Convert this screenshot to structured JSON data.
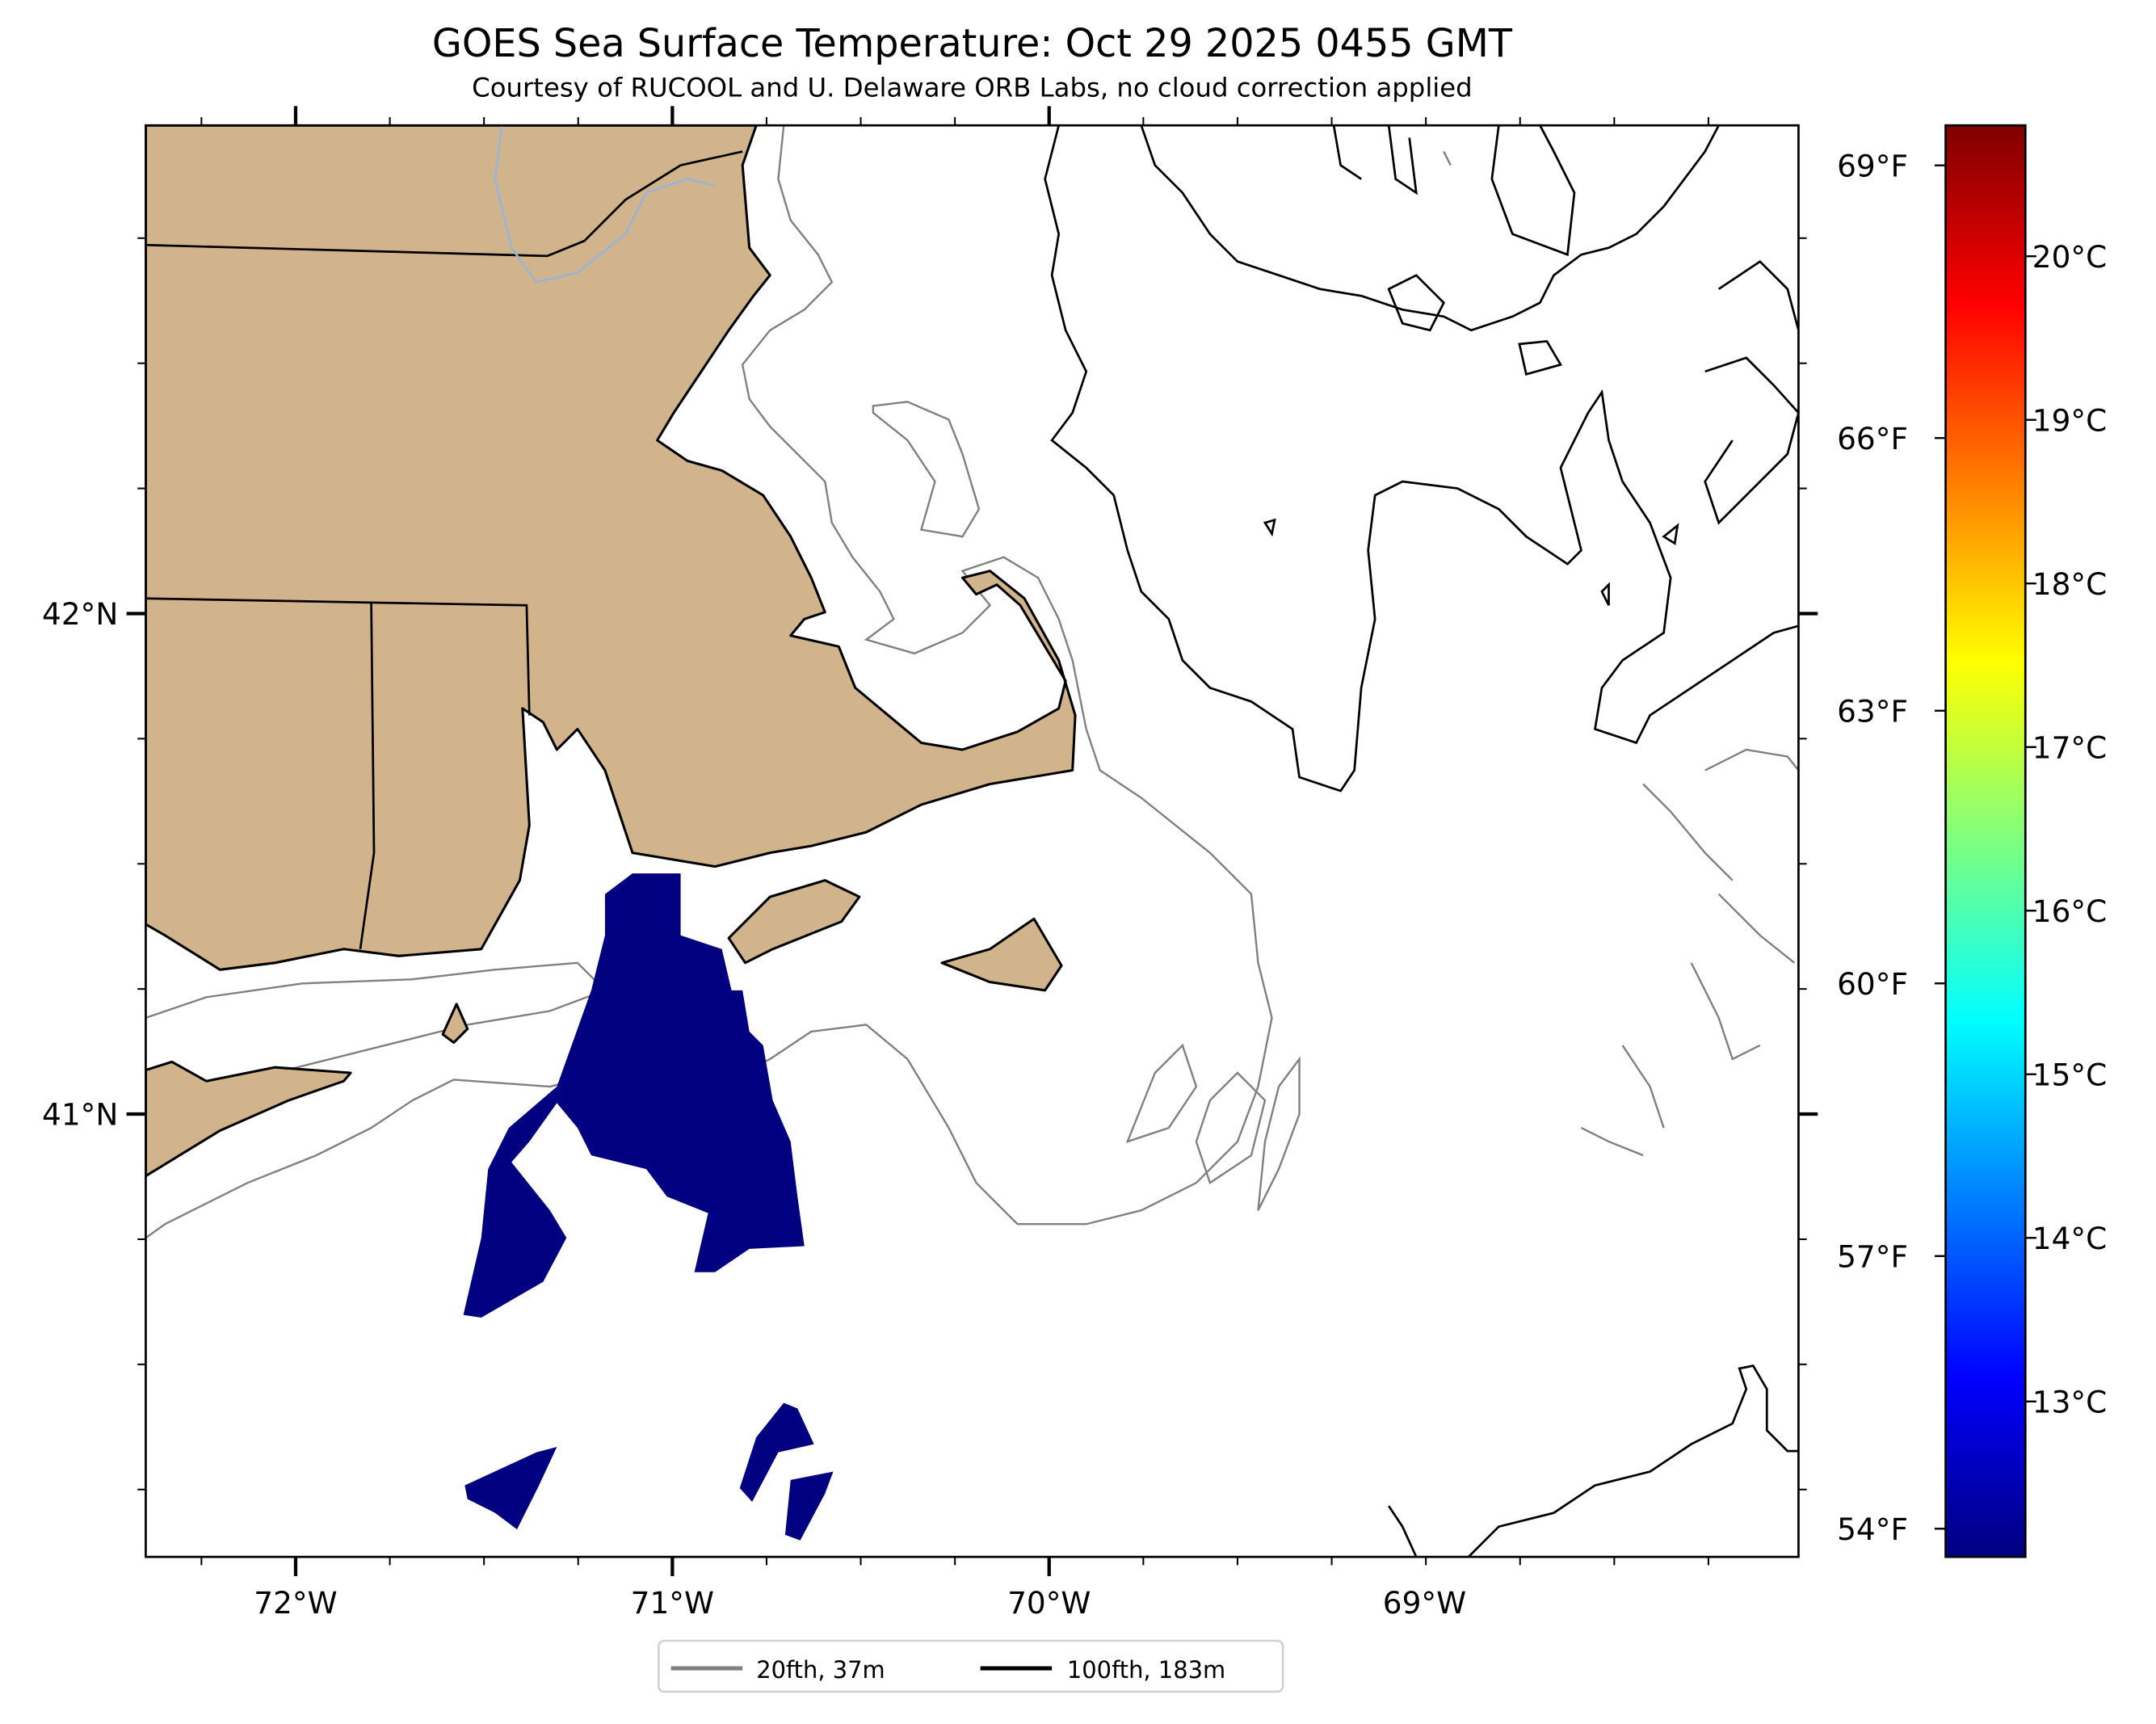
{
  "title": "GOES Sea Surface Temperature: Oct 29 2025 0455 GMT",
  "subtitle": "Courtesy of RUCOOL and U. Delaware ORB Labs, no cloud correction applied",
  "map": {
    "lon_labels": [
      "72°W",
      "71°W",
      "70°W",
      "69°W"
    ],
    "lat_labels": [
      "42°N",
      "41°N"
    ],
    "colors": {
      "land": "#d2b48c",
      "ocean": "#ffffff",
      "sst_patch": "#000080",
      "contour_20fth": "#808080",
      "contour_100fth": "#000000",
      "river": "#9ab4d6"
    }
  },
  "colorbar": {
    "range_c": [
      12.05,
      20.8
    ],
    "fahrenheit_ticks": [
      {
        "label": "69°F",
        "value_f": 69
      },
      {
        "label": "66°F",
        "value_f": 66
      },
      {
        "label": "63°F",
        "value_f": 63
      },
      {
        "label": "60°F",
        "value_f": 60
      },
      {
        "label": "57°F",
        "value_f": 57
      },
      {
        "label": "54°F",
        "value_f": 54
      }
    ],
    "celsius_ticks": [
      {
        "label": "20°C",
        "value_c": 20
      },
      {
        "label": "19°C",
        "value_c": 19
      },
      {
        "label": "18°C",
        "value_c": 18
      },
      {
        "label": "17°C",
        "value_c": 17
      },
      {
        "label": "16°C",
        "value_c": 16
      },
      {
        "label": "15°C",
        "value_c": 15
      },
      {
        "label": "14°C",
        "value_c": 14
      },
      {
        "label": "13°C",
        "value_c": 13
      }
    ],
    "colormap": [
      "#00007f",
      "#0000ff",
      "#007fff",
      "#00ffff",
      "#7fff7f",
      "#ffff00",
      "#ff7f00",
      "#ff0000",
      "#7f0000"
    ]
  },
  "legend": {
    "items": [
      {
        "label": "20fth, 37m",
        "color": "#808080"
      },
      {
        "label": "100fth, 183m",
        "color": "#000000"
      }
    ]
  }
}
